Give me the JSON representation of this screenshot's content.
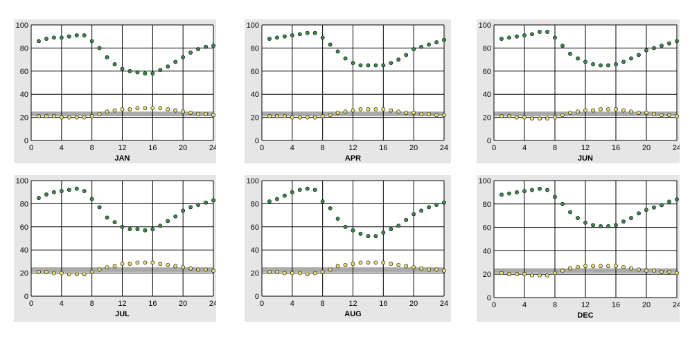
{
  "colors": {
    "panel_bg": "#e6e6e6",
    "plot_bg": "#ffffff",
    "grid": "#000000",
    "band": "#aaaaaa",
    "rh_marker": "#3a8a4a",
    "temp_marker": "#e8e070",
    "marker_edge": "#000000"
  },
  "chart_data": [
    {
      "type": "scatter",
      "title": "JAN",
      "xlim": [
        0,
        24
      ],
      "ylim": [
        0,
        100
      ],
      "xticks": [
        0,
        4,
        8,
        12,
        16,
        20,
        24
      ],
      "yticks": [
        0,
        20,
        40,
        60,
        80,
        100
      ],
      "grid": true,
      "band": [
        21,
        25
      ],
      "series": [
        {
          "x": [
            1,
            2,
            3,
            4,
            5,
            6,
            7,
            8,
            9,
            10,
            11,
            12,
            13,
            14,
            15,
            16,
            17,
            18,
            19,
            20,
            21,
            22,
            23,
            24
          ],
          "values": [
            86,
            88,
            89,
            89,
            90,
            91,
            91,
            86,
            80,
            72,
            66,
            62,
            60,
            59,
            58,
            58,
            61,
            64,
            68,
            72,
            76,
            79,
            81,
            82
          ],
          "color": "#3a8a4a"
        },
        {
          "x": [
            1,
            2,
            3,
            4,
            5,
            6,
            7,
            8,
            9,
            10,
            11,
            12,
            13,
            14,
            15,
            16,
            17,
            18,
            19,
            20,
            21,
            22,
            23,
            24
          ],
          "values": [
            21,
            21,
            21,
            20,
            20,
            20,
            20,
            21,
            23,
            25,
            26,
            27,
            27,
            28,
            28,
            28,
            28,
            27,
            26,
            25,
            24,
            23,
            23,
            22
          ],
          "color": "#e8e070"
        }
      ]
    },
    {
      "type": "scatter",
      "title": "APR",
      "xlim": [
        0,
        24
      ],
      "ylim": [
        0,
        100
      ],
      "xticks": [
        0,
        4,
        8,
        12,
        16,
        20,
        24
      ],
      "yticks": [
        0,
        20,
        40,
        60,
        80,
        100
      ],
      "grid": true,
      "band": [
        21,
        25
      ],
      "series": [
        {
          "x": [
            1,
            2,
            3,
            4,
            5,
            6,
            7,
            8,
            9,
            10,
            11,
            12,
            13,
            14,
            15,
            16,
            17,
            18,
            19,
            20,
            21,
            22,
            23,
            24
          ],
          "values": [
            88,
            89,
            90,
            91,
            92,
            93,
            93,
            89,
            83,
            77,
            71,
            67,
            65,
            65,
            65,
            65,
            67,
            70,
            74,
            79,
            81,
            83,
            85,
            87
          ],
          "color": "#3a8a4a"
        },
        {
          "x": [
            1,
            2,
            3,
            4,
            5,
            6,
            7,
            8,
            9,
            10,
            11,
            12,
            13,
            14,
            15,
            16,
            17,
            18,
            19,
            20,
            21,
            22,
            23,
            24
          ],
          "values": [
            21,
            21,
            21,
            20,
            20,
            20,
            20,
            21,
            22,
            24,
            25,
            26,
            27,
            27,
            27,
            27,
            26,
            25,
            24,
            24,
            23,
            23,
            22,
            22
          ],
          "color": "#e8e070"
        }
      ]
    },
    {
      "type": "scatter",
      "title": "JUN",
      "xlim": [
        0,
        24
      ],
      "ylim": [
        0,
        100
      ],
      "xticks": [
        0,
        4,
        8,
        12,
        16,
        20,
        24
      ],
      "yticks": [
        0,
        20,
        40,
        60,
        80,
        100
      ],
      "grid": true,
      "band": [
        21,
        25
      ],
      "series": [
        {
          "x": [
            1,
            2,
            3,
            4,
            5,
            6,
            7,
            8,
            9,
            10,
            11,
            12,
            13,
            14,
            15,
            16,
            17,
            18,
            19,
            20,
            21,
            22,
            23,
            24
          ],
          "values": [
            88,
            89,
            90,
            91,
            92,
            94,
            94,
            89,
            82,
            75,
            71,
            68,
            66,
            65,
            65,
            66,
            68,
            71,
            74,
            78,
            80,
            82,
            84,
            86
          ],
          "color": "#3a8a4a"
        },
        {
          "x": [
            1,
            2,
            3,
            4,
            5,
            6,
            7,
            8,
            9,
            10,
            11,
            12,
            13,
            14,
            15,
            16,
            17,
            18,
            19,
            20,
            21,
            22,
            23,
            24
          ],
          "values": [
            21,
            21,
            20,
            20,
            19,
            19,
            19,
            20,
            22,
            24,
            25,
            26,
            26,
            27,
            27,
            27,
            26,
            25,
            24,
            24,
            23,
            22,
            22,
            21
          ],
          "color": "#e8e070"
        }
      ]
    },
    {
      "type": "scatter",
      "title": "JUL",
      "xlim": [
        0,
        24
      ],
      "ylim": [
        0,
        100
      ],
      "xticks": [
        0,
        4,
        8,
        12,
        16,
        20,
        24
      ],
      "yticks": [
        0,
        20,
        40,
        60,
        80,
        100
      ],
      "grid": true,
      "band": [
        21,
        25
      ],
      "series": [
        {
          "x": [
            1,
            2,
            3,
            4,
            5,
            6,
            7,
            8,
            9,
            10,
            11,
            12,
            13,
            14,
            15,
            16,
            17,
            18,
            19,
            20,
            21,
            22,
            23,
            24
          ],
          "values": [
            85,
            88,
            90,
            91,
            92,
            93,
            91,
            84,
            77,
            68,
            64,
            60,
            58,
            58,
            57,
            58,
            61,
            65,
            69,
            74,
            77,
            79,
            81,
            83
          ],
          "color": "#3a8a4a"
        },
        {
          "x": [
            1,
            2,
            3,
            4,
            5,
            6,
            7,
            8,
            9,
            10,
            11,
            12,
            13,
            14,
            15,
            16,
            17,
            18,
            19,
            20,
            21,
            22,
            23,
            24
          ],
          "values": [
            21,
            21,
            20,
            20,
            19,
            19,
            19,
            21,
            23,
            25,
            26,
            28,
            28,
            29,
            29,
            29,
            28,
            27,
            26,
            25,
            24,
            23,
            23,
            22
          ],
          "color": "#e8e070"
        }
      ]
    },
    {
      "type": "scatter",
      "title": "AUG",
      "xlim": [
        0,
        24
      ],
      "ylim": [
        0,
        100
      ],
      "xticks": [
        0,
        4,
        8,
        12,
        16,
        20,
        24
      ],
      "yticks": [
        0,
        20,
        40,
        60,
        80,
        100
      ],
      "grid": true,
      "band": [
        21,
        25
      ],
      "series": [
        {
          "x": [
            1,
            2,
            3,
            4,
            5,
            6,
            7,
            8,
            9,
            10,
            11,
            12,
            13,
            14,
            15,
            16,
            17,
            18,
            19,
            20,
            21,
            22,
            23,
            24
          ],
          "values": [
            82,
            84,
            87,
            90,
            92,
            93,
            92,
            82,
            76,
            67,
            60,
            57,
            54,
            52,
            52,
            55,
            58,
            61,
            66,
            71,
            74,
            77,
            79,
            81
          ],
          "color": "#3a8a4a"
        },
        {
          "x": [
            1,
            2,
            3,
            4,
            5,
            6,
            7,
            8,
            9,
            10,
            11,
            12,
            13,
            14,
            15,
            16,
            17,
            18,
            19,
            20,
            21,
            22,
            23,
            24
          ],
          "values": [
            21,
            21,
            20,
            20,
            20,
            19,
            20,
            21,
            23,
            26,
            27,
            28,
            29,
            29,
            29,
            29,
            28,
            27,
            26,
            25,
            24,
            23,
            23,
            22
          ],
          "color": "#e8e070"
        }
      ]
    },
    {
      "type": "scatter",
      "title": "DEC",
      "xlim": [
        0,
        24
      ],
      "ylim": [
        0,
        100
      ],
      "xticks": [
        0,
        4,
        8,
        12,
        16,
        20,
        24
      ],
      "yticks": [
        0,
        20,
        40,
        60,
        80,
        100
      ],
      "grid": true,
      "band": [
        21,
        25
      ],
      "series": [
        {
          "x": [
            1,
            2,
            3,
            4,
            5,
            6,
            7,
            8,
            9,
            10,
            11,
            12,
            13,
            14,
            15,
            16,
            17,
            18,
            19,
            20,
            21,
            22,
            23,
            24
          ],
          "values": [
            88,
            89,
            90,
            91,
            92,
            93,
            92,
            86,
            80,
            73,
            68,
            64,
            62,
            61,
            61,
            62,
            65,
            68,
            72,
            75,
            77,
            79,
            82,
            84
          ],
          "color": "#3a8a4a"
        },
        {
          "x": [
            1,
            2,
            3,
            4,
            5,
            6,
            7,
            8,
            9,
            10,
            11,
            12,
            13,
            14,
            15,
            16,
            17,
            18,
            19,
            20,
            21,
            22,
            23,
            24
          ],
          "values": [
            21,
            20,
            20,
            20,
            19,
            19,
            19,
            21,
            23,
            25,
            26,
            27,
            27,
            27,
            27,
            27,
            26,
            25,
            24,
            23,
            23,
            22,
            22,
            21
          ],
          "color": "#e8e070"
        }
      ]
    }
  ]
}
